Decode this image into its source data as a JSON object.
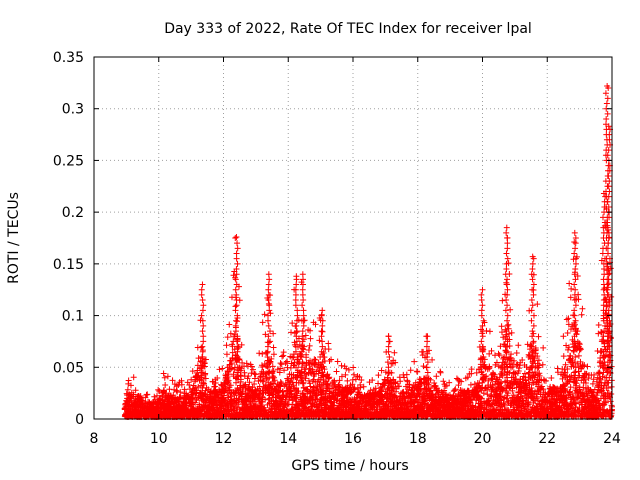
{
  "chart_data": {
    "type": "scatter",
    "title": "Day 333 of 2022, Rate Of TEC Index for receiver lpal",
    "xlabel": "GPS time / hours",
    "ylabel": "ROTI / TECUs",
    "xlim": [
      8,
      24
    ],
    "ylim": [
      0,
      0.35
    ],
    "xticks": [
      "8",
      "10",
      "12",
      "14",
      "16",
      "18",
      "20",
      "22",
      "24"
    ],
    "yticks": [
      "0",
      "0.05",
      "0.1",
      "0.15",
      "0.2",
      "0.25",
      "0.3",
      "0.35"
    ],
    "grid": true,
    "marker": "+",
    "colors": {
      "series": "#ff0000",
      "axis": "#000000",
      "grid": "#a0a0a0"
    },
    "series": [
      {
        "name": "ROTI",
        "envelope": [
          [
            9.0,
            0.035
          ],
          [
            9.1,
            0.04
          ],
          [
            9.3,
            0.042
          ],
          [
            9.6,
            0.025
          ],
          [
            10.0,
            0.03
          ],
          [
            10.15,
            0.05
          ],
          [
            10.5,
            0.035
          ],
          [
            11.0,
            0.04
          ],
          [
            11.35,
            0.13
          ],
          [
            11.5,
            0.045
          ],
          [
            12.0,
            0.05
          ],
          [
            12.4,
            0.176
          ],
          [
            12.6,
            0.06
          ],
          [
            13.0,
            0.05
          ],
          [
            13.4,
            0.14
          ],
          [
            13.6,
            0.06
          ],
          [
            14.0,
            0.07
          ],
          [
            14.2,
            0.135
          ],
          [
            14.4,
            0.14
          ],
          [
            14.7,
            0.1
          ],
          [
            15.0,
            0.105
          ],
          [
            15.3,
            0.07
          ],
          [
            15.6,
            0.055
          ],
          [
            16.0,
            0.05
          ],
          [
            16.3,
            0.04
          ],
          [
            16.8,
            0.045
          ],
          [
            17.1,
            0.08
          ],
          [
            17.5,
            0.045
          ],
          [
            18.0,
            0.06
          ],
          [
            18.3,
            0.08
          ],
          [
            18.6,
            0.05
          ],
          [
            19.0,
            0.035
          ],
          [
            19.4,
            0.045
          ],
          [
            19.8,
            0.05
          ],
          [
            20.0,
            0.125
          ],
          [
            20.2,
            0.09
          ],
          [
            20.5,
            0.07
          ],
          [
            20.75,
            0.185
          ],
          [
            21.0,
            0.08
          ],
          [
            21.3,
            0.06
          ],
          [
            21.55,
            0.155
          ],
          [
            21.8,
            0.08
          ],
          [
            22.0,
            0.06
          ],
          [
            22.4,
            0.05
          ],
          [
            22.8,
            0.18
          ],
          [
            23.0,
            0.145
          ],
          [
            23.2,
            0.06
          ],
          [
            23.5,
            0.04
          ],
          [
            23.75,
            0.22
          ],
          [
            23.85,
            0.32
          ],
          [
            24.0,
            0.1
          ]
        ],
        "peaks": [
          [
            11.35,
            0.13
          ],
          [
            12.4,
            0.176
          ],
          [
            13.4,
            0.14
          ],
          [
            14.25,
            0.138
          ],
          [
            14.45,
            0.14
          ],
          [
            15.05,
            0.105
          ],
          [
            17.1,
            0.08
          ],
          [
            18.3,
            0.08
          ],
          [
            20.0,
            0.125
          ],
          [
            20.75,
            0.185
          ],
          [
            21.55,
            0.157
          ],
          [
            22.85,
            0.18
          ],
          [
            23.75,
            0.218
          ],
          [
            23.85,
            0.322
          ],
          [
            23.9,
            0.283
          ]
        ]
      }
    ]
  }
}
